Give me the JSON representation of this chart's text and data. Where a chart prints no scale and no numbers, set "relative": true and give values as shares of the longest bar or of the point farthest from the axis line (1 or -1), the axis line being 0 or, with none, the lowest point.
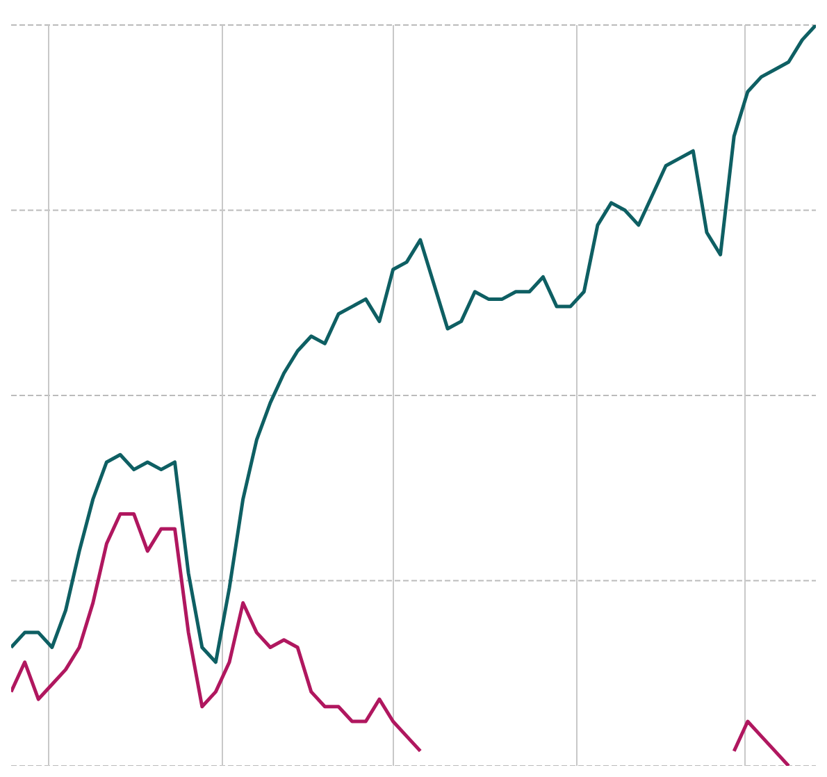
{
  "chart_data": {
    "type": "line",
    "relative": true,
    "grid": true,
    "marker": "none",
    "line_style": "solid",
    "categories": [
      null,
      null,
      null,
      null,
      null,
      null,
      null,
      null,
      null,
      null,
      null,
      null,
      null,
      null,
      null,
      null,
      null,
      null,
      null,
      null,
      null,
      null,
      null,
      null,
      null,
      null,
      null,
      null,
      null,
      null,
      null,
      null,
      null,
      null,
      null,
      null,
      null,
      null,
      null,
      null,
      null,
      null,
      null,
      null,
      null,
      null,
      null,
      null,
      null,
      null,
      null,
      null,
      null,
      null,
      null,
      null,
      null,
      null,
      null,
      null
    ],
    "series": [
      {
        "color": "#0e5f63",
        "values": [
          0.16,
          0.18,
          0.18,
          0.16,
          0.21,
          0.29,
          0.36,
          0.41,
          0.42,
          0.4,
          0.41,
          0.4,
          0.41,
          0.26,
          0.16,
          0.14,
          0.24,
          0.36,
          0.44,
          0.49,
          0.53,
          0.56,
          0.58,
          0.57,
          0.61,
          0.62,
          0.63,
          0.6,
          0.67,
          0.68,
          0.71,
          0.65,
          0.59,
          0.6,
          0.64,
          0.63,
          0.63,
          0.64,
          0.64,
          0.66,
          0.62,
          0.62,
          0.64,
          0.73,
          0.76,
          0.75,
          0.73,
          0.77,
          0.81,
          0.82,
          0.83,
          0.72,
          0.69,
          0.85,
          0.91,
          0.93,
          0.94,
          0.95,
          0.98,
          1
        ]
      },
      {
        "color": "#b0175f",
        "values": [
          0.1,
          0.14,
          0.09,
          0.11,
          0.13,
          0.16,
          0.22,
          0.3,
          0.34,
          0.34,
          0.29,
          0.32,
          0.32,
          0.18,
          0.08,
          0.1,
          0.14,
          0.22,
          0.18,
          0.16,
          0.17,
          0.16,
          0.1,
          0.08,
          0.08,
          0.06,
          0.06,
          0.09,
          0.06,
          0.04,
          0.02,
          null,
          null,
          null,
          null,
          null,
          null,
          null,
          null,
          null,
          null,
          null,
          null,
          null,
          null,
          null,
          null,
          null,
          null,
          null,
          null,
          null,
          null,
          0.02,
          0.06,
          0.04,
          0.02,
          0,
          null,
          null
        ]
      }
    ]
  }
}
